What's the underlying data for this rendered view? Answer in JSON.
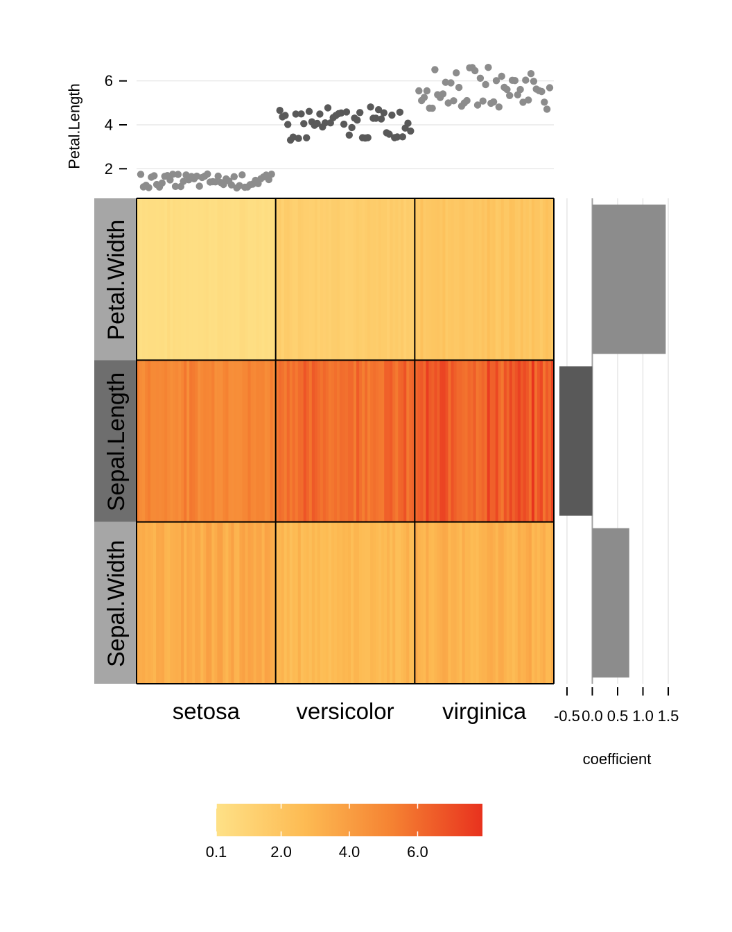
{
  "chart_data": {
    "type": "heatmap",
    "columns": [
      "setosa",
      "versicolor",
      "virginica"
    ],
    "rows": [
      "Petal.Width",
      "Sepal.Length",
      "Sepal.Width"
    ],
    "cell_value_ranges": {
      "Petal.Width": [
        [
          0.1,
          0.6
        ],
        [
          1.0,
          1.8
        ],
        [
          1.4,
          2.5
        ]
      ],
      "Sepal.Length": [
        [
          4.3,
          5.8
        ],
        [
          4.9,
          7.0
        ],
        [
          4.9,
          7.9
        ]
      ],
      "Sepal.Width": [
        [
          2.3,
          4.4
        ],
        [
          2.0,
          3.4
        ],
        [
          2.2,
          3.8
        ]
      ]
    },
    "color_scale": {
      "stops": [
        "#FEE187",
        "#FDBB53",
        "#F58232",
        "#E8321E"
      ],
      "min": 0.1,
      "max": 7.9,
      "tick_values": [
        0.1,
        2.0,
        4.0,
        6.0
      ],
      "tick_labels": [
        "0.1",
        "2.0",
        "4.0",
        "6.0"
      ]
    },
    "top_scatter": {
      "ylabel": "Petal.Length",
      "ylim": [
        1.0,
        7.0
      ],
      "yticks": [
        2,
        4,
        6
      ],
      "ytick_labels": [
        "2",
        "4",
        "6"
      ],
      "groups": [
        {
          "name": "setosa",
          "color": "#8c8c8c",
          "points_per_group": 50,
          "y_range": [
            1.0,
            1.9
          ]
        },
        {
          "name": "versicolor",
          "color": "#595959",
          "points_per_group": 50,
          "y_range": [
            3.0,
            5.1
          ]
        },
        {
          "name": "virginica",
          "color": "#8c8c8c",
          "points_per_group": 50,
          "y_range": [
            4.5,
            6.9
          ]
        }
      ]
    },
    "right_bars": {
      "type": "bar",
      "xlabel": "coefficient",
      "xlim": [
        -0.65,
        1.65
      ],
      "xticks": [
        -0.5,
        0.0,
        0.5,
        1.0,
        1.5
      ],
      "xtick_labels": [
        "-0.5",
        "0.0",
        "0.5",
        "1.0",
        "1.5"
      ],
      "categories": [
        "Petal.Width",
        "Sepal.Length",
        "Sepal.Width"
      ],
      "values": [
        1.45,
        -0.65,
        0.73
      ],
      "colors": [
        "#8c8c8c",
        "#595959",
        "#8c8c8c"
      ]
    },
    "row_label_colors": [
      "#a6a6a6",
      "#6e6e6e",
      "#a6a6a6"
    ]
  }
}
